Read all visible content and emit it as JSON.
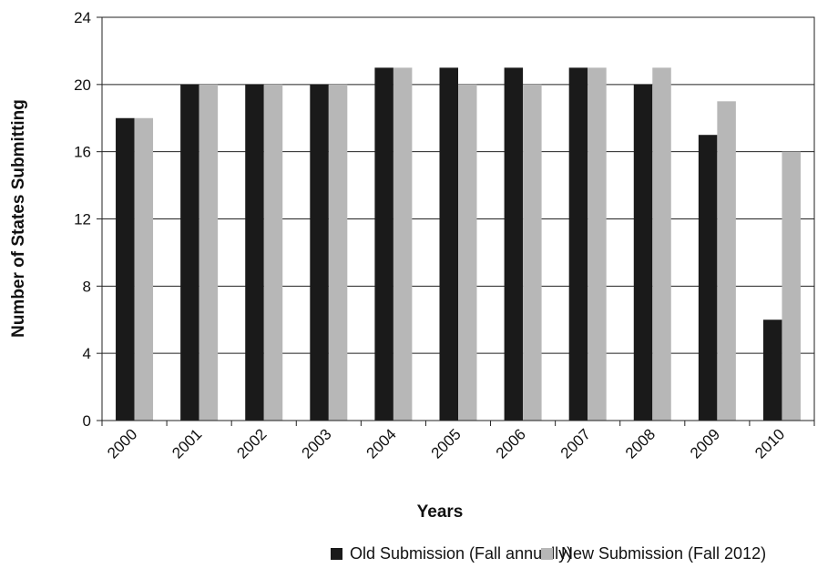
{
  "chart_data": {
    "type": "bar",
    "title": "",
    "xlabel": "Years",
    "ylabel": "Number of States Submitting",
    "categories": [
      "2000",
      "2001",
      "2002",
      "2003",
      "2004",
      "2005",
      "2006",
      "2007",
      "2008",
      "2009",
      "2010"
    ],
    "series": [
      {
        "name": "Old Submission (Fall annually)",
        "color": "#1a1a1a",
        "values": [
          18,
          20,
          20,
          20,
          21,
          21,
          21,
          21,
          20,
          17,
          6
        ]
      },
      {
        "name": "New Submission (Fall 2012)",
        "color": "#b7b7b7",
        "values": [
          18,
          20,
          20,
          20,
          21,
          20,
          20,
          21,
          21,
          19,
          16
        ]
      }
    ],
    "ylim": [
      0,
      24
    ],
    "yticks": [
      0,
      4,
      8,
      12,
      16,
      20,
      24
    ],
    "grid": true,
    "legend_position": "bottom-right"
  }
}
